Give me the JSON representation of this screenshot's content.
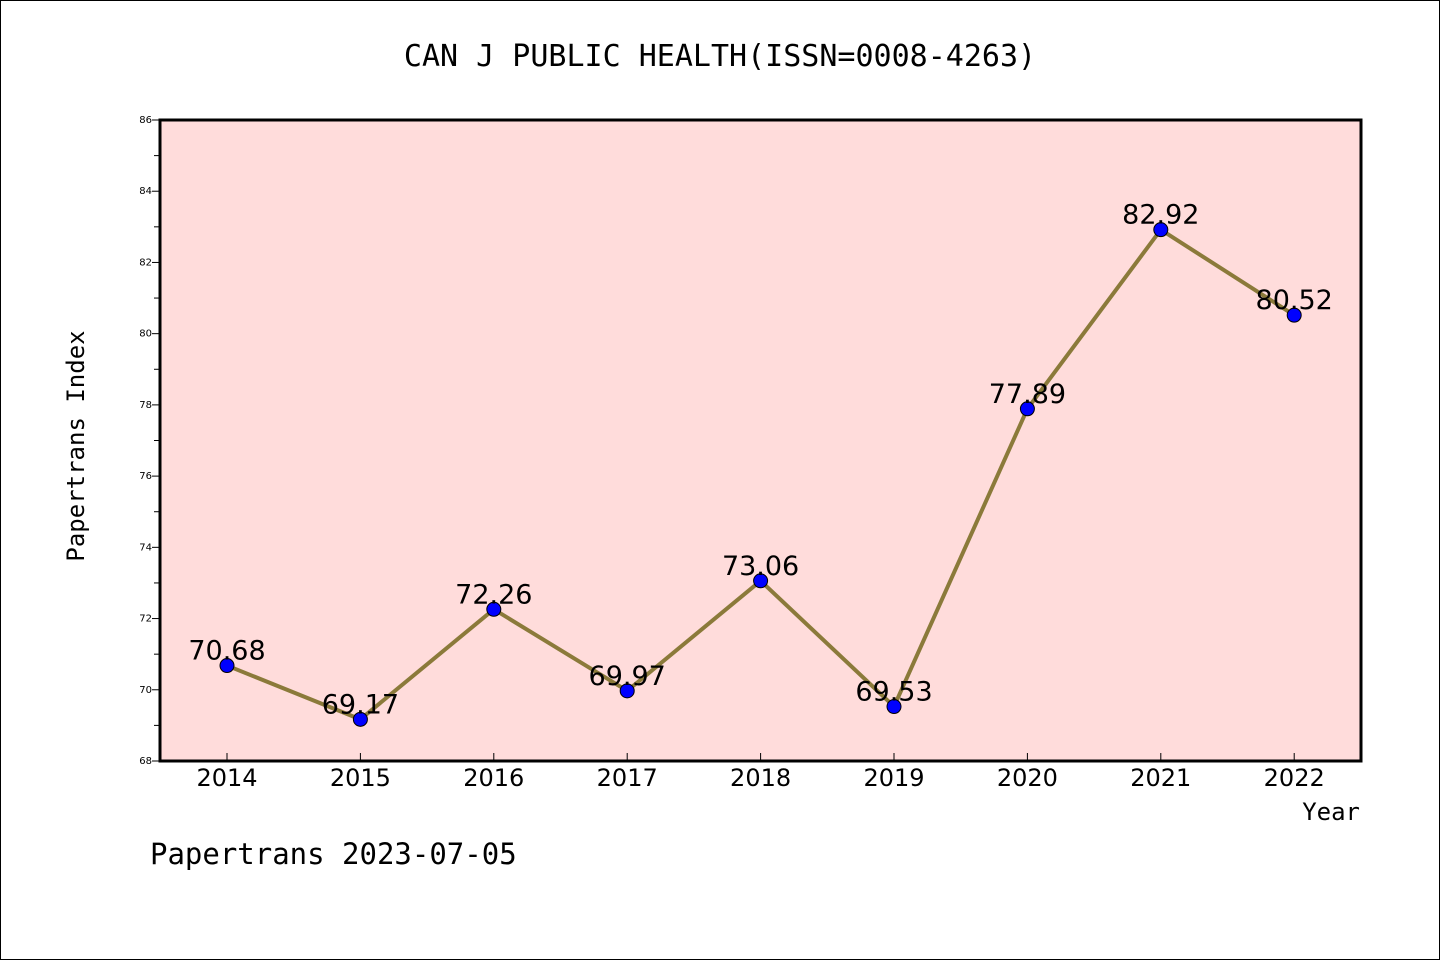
{
  "chart_data": {
    "type": "line",
    "title": "CAN J PUBLIC HEALTH(ISSN=0008-4263)",
    "xlabel": "Year",
    "ylabel": "Papertrans Index",
    "x": [
      "2014",
      "2015",
      "2016",
      "2017",
      "2018",
      "2019",
      "2020",
      "2021",
      "2022"
    ],
    "series": [
      {
        "values": [
          70.68,
          69.17,
          72.26,
          69.97,
          73.06,
          69.53,
          77.89,
          82.92,
          80.52
        ],
        "labels": [
          "70.68",
          "69.17",
          "72.26",
          "69.97",
          "73.06",
          "69.53",
          "77.89",
          "82.92",
          "80.52"
        ],
        "line_color": "#8b7a3a",
        "marker_color": "#0000ff"
      }
    ],
    "ylim": [
      68,
      86
    ],
    "yticks": [
      "68",
      "70",
      "72",
      "74",
      "76",
      "78",
      "80",
      "82",
      "84",
      "86"
    ],
    "plot_background": "#ffdcdb",
    "grid": false,
    "legend": "none"
  },
  "footer": "Papertrans 2023-07-05"
}
